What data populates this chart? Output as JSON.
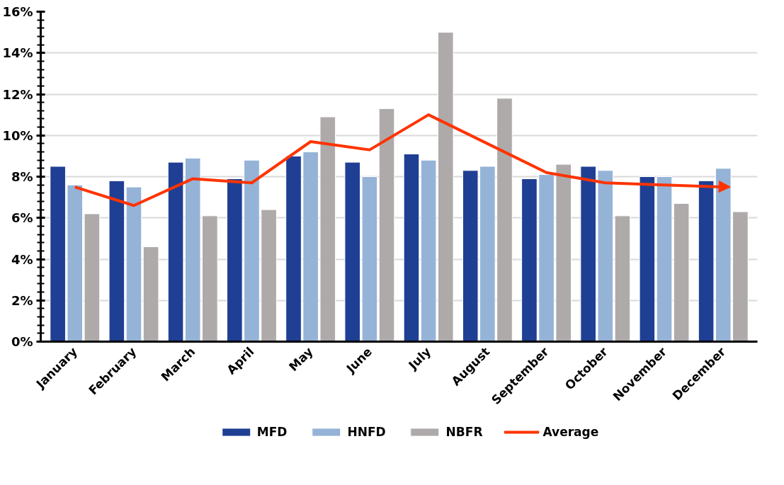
{
  "chart_data": {
    "type": "bar",
    "categories": [
      "January",
      "February",
      "March",
      "April",
      "May",
      "June",
      "July",
      "August",
      "September",
      "October",
      "November",
      "December"
    ],
    "series": [
      {
        "name": "MFD",
        "color": "#1f3f94",
        "values": [
          8.5,
          7.8,
          8.7,
          7.9,
          9.0,
          8.7,
          9.1,
          8.3,
          7.9,
          8.5,
          8.0,
          7.8
        ]
      },
      {
        "name": "HNFD",
        "color": "#95b3d7",
        "values": [
          7.6,
          7.5,
          8.9,
          8.8,
          9.2,
          8.0,
          8.8,
          8.5,
          8.1,
          8.3,
          8.0,
          8.4
        ]
      },
      {
        "name": "NBFR",
        "color": "#aeaaaa",
        "values": [
          6.2,
          4.6,
          6.1,
          6.4,
          10.9,
          11.3,
          15.0,
          11.8,
          8.6,
          6.1,
          6.7,
          6.3
        ]
      },
      {
        "name": "Average",
        "type": "line",
        "color": "#ff3300",
        "values": [
          7.5,
          6.6,
          7.9,
          7.7,
          9.7,
          9.3,
          11.0,
          9.6,
          8.2,
          7.7,
          7.6,
          7.5
        ]
      }
    ],
    "ylim": [
      0,
      16
    ],
    "yticks": [
      {
        "value": 0,
        "label": "0%"
      },
      {
        "value": 2,
        "label": "2%"
      },
      {
        "value": 4,
        "label": "4%"
      },
      {
        "value": 6,
        "label": "6%"
      },
      {
        "value": 8,
        "label": "8%"
      },
      {
        "value": 10,
        "label": "10%"
      },
      {
        "value": 12,
        "label": "12%"
      },
      {
        "value": 14,
        "label": "14%"
      },
      {
        "value": 16,
        "label": "16%"
      }
    ],
    "grid": "y",
    "legend": "bottom",
    "marker": "none",
    "line_style": "solid"
  }
}
